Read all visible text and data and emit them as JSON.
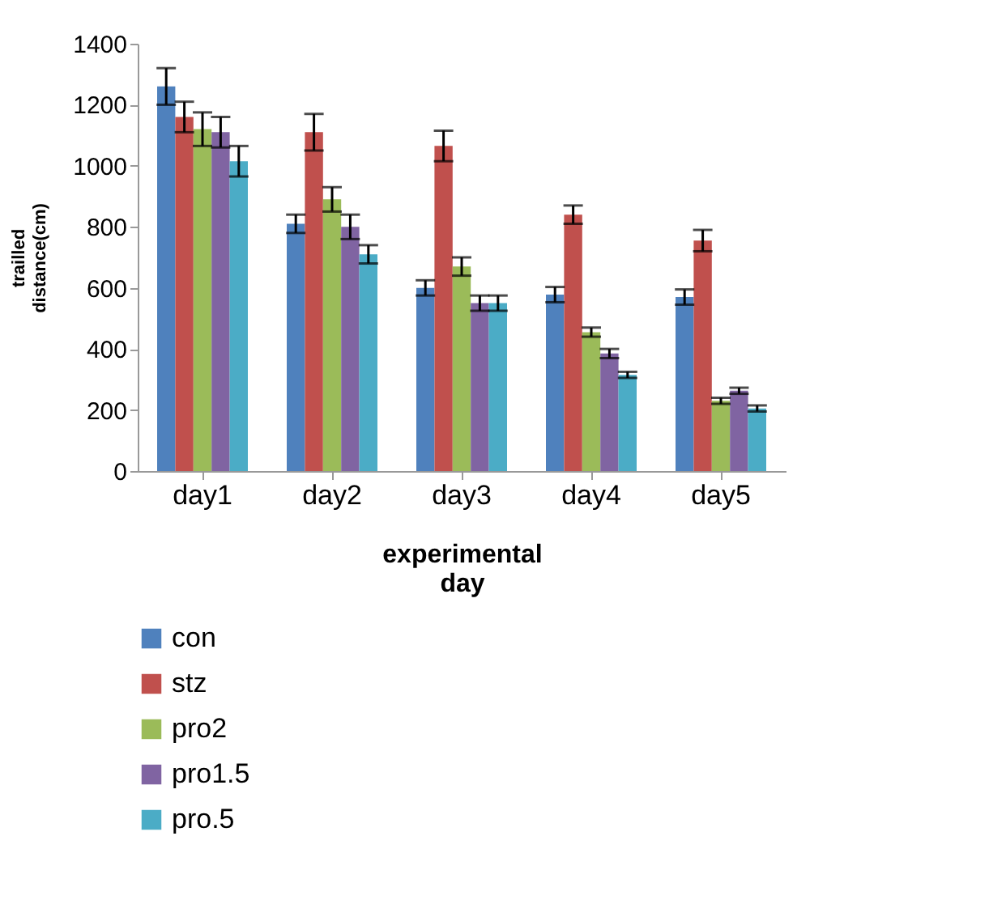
{
  "chart_data": {
    "type": "bar",
    "xlabel": "experimental day",
    "ylabel": "trailled distance(cm)",
    "categories": [
      "day1",
      "day2",
      "day3",
      "day4",
      "day5"
    ],
    "series": [
      {
        "name": "con",
        "color": "#4f81bd",
        "values": [
          1260,
          810,
          600,
          578,
          570
        ],
        "errors": [
          60,
          30,
          25,
          25,
          25
        ]
      },
      {
        "name": "stz",
        "color": "#c0504d",
        "values": [
          1160,
          1110,
          1065,
          840,
          755
        ],
        "errors": [
          50,
          60,
          50,
          30,
          35
        ]
      },
      {
        "name": "pro2",
        "color": "#9bbb59",
        "values": [
          1120,
          890,
          670,
          455,
          230
        ],
        "errors": [
          55,
          40,
          30,
          15,
          10
        ]
      },
      {
        "name": "pro1.5",
        "color": "#8064a2",
        "values": [
          1110,
          800,
          550,
          385,
          263
        ],
        "errors": [
          50,
          40,
          25,
          15,
          10
        ]
      },
      {
        "name": "pro.5",
        "color": "#4bacc6",
        "values": [
          1015,
          710,
          550,
          315,
          205
        ],
        "errors": [
          50,
          30,
          25,
          10,
          10
        ]
      }
    ],
    "ylim": [
      0,
      1400
    ],
    "yticks": [
      0,
      200,
      400,
      600,
      800,
      1000,
      1200,
      1400
    ],
    "grid": false,
    "legend": "bottom left"
  }
}
